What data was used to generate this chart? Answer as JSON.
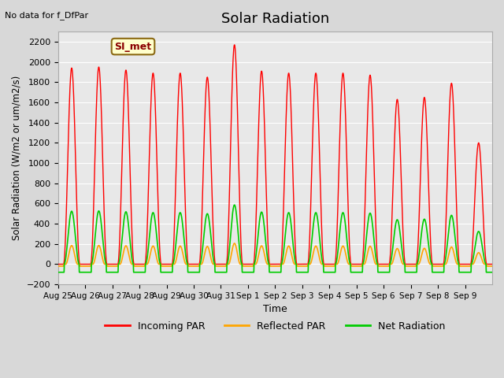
{
  "title": "Solar Radiation",
  "subtitle": "No data for f_DfPar",
  "xlabel": "Time",
  "ylabel": "Solar Radiation (W/m2 or um/m2/s)",
  "ylim": [
    -200,
    2300
  ],
  "yticks": [
    -200,
    0,
    200,
    400,
    600,
    800,
    1000,
    1200,
    1400,
    1600,
    1800,
    2000,
    2200
  ],
  "xtick_positions": [
    0,
    1,
    2,
    3,
    4,
    5,
    6,
    7,
    8,
    9,
    10,
    11,
    12,
    13,
    14,
    15
  ],
  "xtick_labels": [
    "Aug 25",
    "Aug 26",
    "Aug 27",
    "Aug 28",
    "Aug 29",
    "Aug 30",
    "Aug 31",
    "Sep 1",
    "Sep 2",
    "Sep 3",
    "Sep 4",
    "Sep 5",
    "Sep 6",
    "Sep 7",
    "Sep 8",
    "Sep 9"
  ],
  "legend_label": "SI_met",
  "line_colors": {
    "incoming": "#ff0000",
    "reflected": "#ffa500",
    "net": "#00cc00"
  },
  "legend_entries": [
    "Incoming PAR",
    "Reflected PAR",
    "Net Radiation"
  ],
  "fig_bg_color": "#d8d8d8",
  "plot_bg_color": "#e8e8e8",
  "incoming_peaks": [
    1940,
    1950,
    1920,
    1890,
    1890,
    1850,
    2170,
    1910,
    1890,
    1890,
    1890,
    1870,
    1630,
    1650,
    1790,
    1200
  ],
  "days": 16,
  "pts_per_day": 96
}
